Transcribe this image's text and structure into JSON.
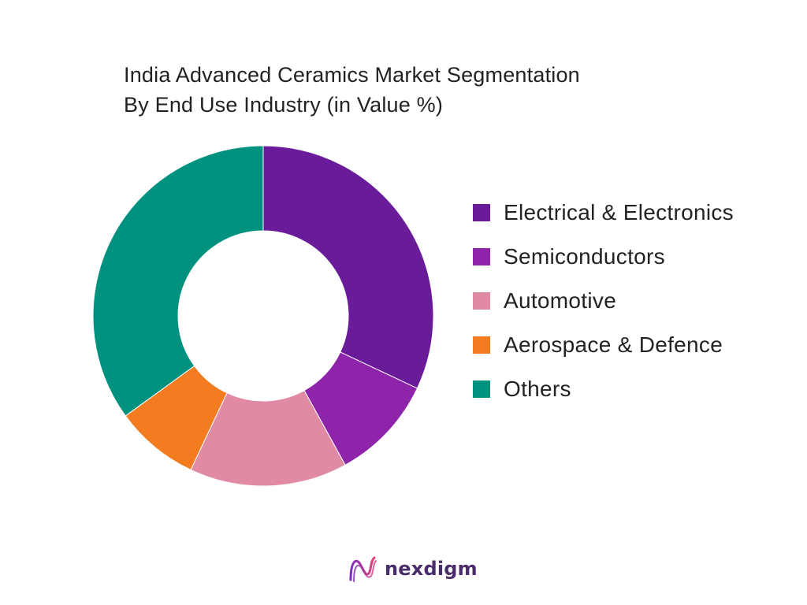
{
  "chart_data": {
    "type": "pie",
    "variant": "donut",
    "title": "India Advanced Ceramics Market Segmentation",
    "subtitle": "By End Use Industry (in Value %)",
    "categories": [
      "Electrical & Electronics",
      "Semiconductors",
      "Automotive",
      "Aerospace & Defence",
      "Others"
    ],
    "values": [
      32,
      10,
      15,
      8,
      35
    ],
    "unit": "%",
    "colors": [
      "#6a1b9a",
      "#8e24aa",
      "#e08aa3",
      "#f37b20",
      "#00917f"
    ],
    "legend_position": "right"
  },
  "brand": {
    "name": "nexdigm",
    "logo_icon": "nexdigm-wave-logo-icon",
    "logo_colors": [
      "#7b2cbf",
      "#e0457b"
    ]
  }
}
